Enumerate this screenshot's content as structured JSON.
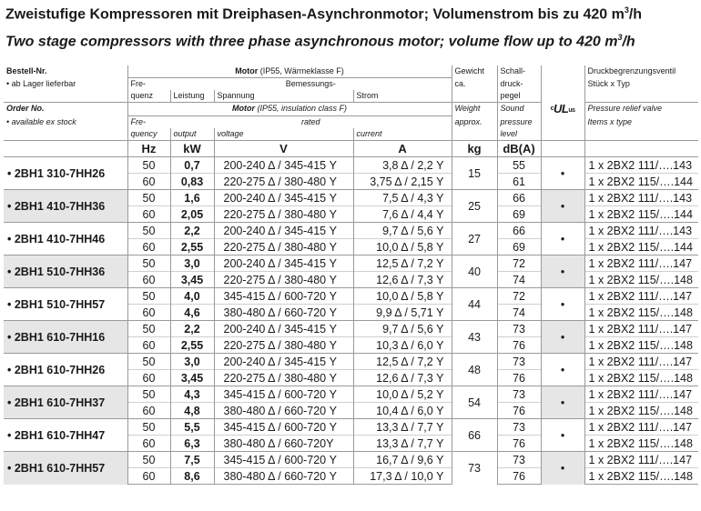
{
  "title_de": "Zweistufige Kompressoren mit Dreiphasen-Asynchronmotor; Volumenstrom bis zu 420 m",
  "title_de_sup": "3",
  "title_de_tail": "/h",
  "title_en": "Two stage compressors with three phase asynchronous motor; volume flow up to 420 m",
  "title_en_sup": "3",
  "title_en_tail": "/h",
  "header_de": {
    "order_no": "Bestell-Nr.",
    "ex_stock": "• ab Lager lieferbar",
    "motor": "Motor",
    "motor_spec": " (IP55, Wärmeklasse F)",
    "rated": "Bemessungs-",
    "freq1": "Fre-",
    "freq2": "quenz",
    "output": "Leistung",
    "voltage": "Spannung",
    "current": "Strom",
    "weight1": "Gewicht",
    "weight2": "ca.",
    "sound1": "Schall-",
    "sound2": "druck-",
    "sound3": "pegel",
    "valve1": "Druckbegrenzungsventil",
    "valve2": "Stück x Typ"
  },
  "header_en": {
    "order_no": "Order No.",
    "ex_stock": "• available ex stock",
    "motor": "Motor",
    "motor_spec": " (IP55, insulation class F)",
    "rated": "rated",
    "freq1": "Fre-",
    "freq2": "quency",
    "output": "output",
    "voltage": "voltage",
    "current": "current",
    "weight1": "Weight",
    "weight2": "approx.",
    "sound1": "Sound",
    "sound2": "pressure",
    "sound3": "level",
    "valve1": "Pressure relief valve",
    "valve2": "Items x type"
  },
  "cert_badge": {
    "c": "c",
    "ul": "UL",
    "us": "us"
  },
  "units": {
    "hz": "Hz",
    "kw": "kW",
    "v": "V",
    "a": "A",
    "kg": "kg",
    "db": "dB(A)"
  },
  "bullet": "•",
  "rows": [
    {
      "order": "• 2BH1 310-7HH26",
      "kg": "15",
      "mark": "•",
      "lines": [
        {
          "hz": "50",
          "kw": "0,7",
          "v": "200-240 Δ / 345-415 Y",
          "a": "3,8 Δ / 2,2 Y",
          "db": "55",
          "valve": "1 x 2BX2 111/….143"
        },
        {
          "hz": "60",
          "kw": "0,83",
          "v": "220-275 Δ / 380-480 Y",
          "a": "3,75 Δ / 2,15 Y",
          "db": "61",
          "valve": "1 x 2BX2 115/….144"
        }
      ]
    },
    {
      "order": "• 2BH1 410-7HH36",
      "kg": "25",
      "mark": "•",
      "lines": [
        {
          "hz": "50",
          "kw": "1,6",
          "v": "200-240 Δ / 345-415 Y",
          "a": "7,5 Δ / 4,3 Y",
          "db": "66",
          "valve": "1 x 2BX2 111/….143"
        },
        {
          "hz": "60",
          "kw": "2,05",
          "v": "220-275 Δ / 380-480 Y",
          "a": "7,6 Δ / 4,4 Y",
          "db": "69",
          "valve": "1 x 2BX2 115/….144"
        }
      ]
    },
    {
      "order": "• 2BH1 410-7HH46",
      "kg": "27",
      "mark": "•",
      "lines": [
        {
          "hz": "50",
          "kw": "2,2",
          "v": "200-240 Δ / 345-415 Y",
          "a": "9,7 Δ / 5,6 Y",
          "db": "66",
          "valve": "1 x 2BX2 111/….143"
        },
        {
          "hz": "60",
          "kw": "2,55",
          "v": "220-275 Δ / 380-480 Y",
          "a": "10,0 Δ / 5,8 Y",
          "db": "69",
          "valve": "1 x 2BX2 115/….144"
        }
      ]
    },
    {
      "order": "• 2BH1 510-7HH36",
      "kg": "40",
      "mark": "•",
      "lines": [
        {
          "hz": "50",
          "kw": "3,0",
          "v": "200-240 Δ / 345-415 Y",
          "a": "12,5 Δ / 7,2 Y",
          "db": "72",
          "valve": "1 x 2BX2 111/….147"
        },
        {
          "hz": "60",
          "kw": "3,45",
          "v": "220-275 Δ / 380-480 Y",
          "a": "12,6 Δ / 7,3 Y",
          "db": "74",
          "valve": "1 x 2BX2 115/….148"
        }
      ]
    },
    {
      "order": "• 2BH1 510-7HH57",
      "kg": "44",
      "mark": "•",
      "lines": [
        {
          "hz": "50",
          "kw": "4,0",
          "v": "345-415 Δ / 600-720 Y",
          "a": "10,0 Δ / 5,8 Y",
          "db": "72",
          "valve": "1 x 2BX2 111/….147"
        },
        {
          "hz": "60",
          "kw": "4,6",
          "v": "380-480 Δ / 660-720 Y",
          "a": "9,9 Δ / 5,71 Y",
          "db": "74",
          "valve": "1 x 2BX2 115/….148"
        }
      ]
    },
    {
      "order": "• 2BH1 610-7HH16",
      "kg": "43",
      "mark": "•",
      "lines": [
        {
          "hz": "50",
          "kw": "2,2",
          "v": "200-240 Δ / 345-415 Y",
          "a": "9,7 Δ / 5,6 Y",
          "db": "73",
          "valve": "1 x 2BX2 111/….147"
        },
        {
          "hz": "60",
          "kw": "2,55",
          "v": "220-275 Δ / 380-480 Y",
          "a": "10,3 Δ / 6,0 Y",
          "db": "76",
          "valve": "1 x 2BX2 115/….148"
        }
      ]
    },
    {
      "order": "• 2BH1 610-7HH26",
      "kg": "48",
      "mark": "•",
      "lines": [
        {
          "hz": "50",
          "kw": "3,0",
          "v": "200-240 Δ / 345-415 Y",
          "a": "12,5 Δ / 7,2 Y",
          "db": "73",
          "valve": "1 x 2BX2 111/….147"
        },
        {
          "hz": "60",
          "kw": "3,45",
          "v": "220-275 Δ / 380-480 Y",
          "a": "12,6 Δ / 7,3 Y",
          "db": "76",
          "valve": "1 x 2BX2 115/….148"
        }
      ]
    },
    {
      "order": "• 2BH1 610-7HH37",
      "kg": "54",
      "mark": "•",
      "lines": [
        {
          "hz": "50",
          "kw": "4,3",
          "v": "345-415 Δ / 600-720 Y",
          "a": "10,0 Δ / 5,2 Y",
          "db": "73",
          "valve": "1 x 2BX2 111/….147"
        },
        {
          "hz": "60",
          "kw": "4,8",
          "v": "380-480 Δ / 660-720 Y",
          "a": "10,4 Δ / 6,0 Y",
          "db": "76",
          "valve": "1 x 2BX2 115/….148"
        }
      ]
    },
    {
      "order": "• 2BH1 610-7HH47",
      "kg": "66",
      "mark": "•",
      "lines": [
        {
          "hz": "50",
          "kw": "5,5",
          "v": "345-415 Δ / 600-720 Y",
          "a": "13,3 Δ / 7,7 Y",
          "db": "73",
          "valve": "1 x 2BX2 111/….147"
        },
        {
          "hz": "60",
          "kw": "6,3",
          "v": "380-480 Δ / 660-720Y",
          "a": "13,3 Δ / 7,7 Y",
          "db": "76",
          "valve": "1 x 2BX2 115/….148"
        }
      ]
    },
    {
      "order": "• 2BH1 610-7HH57",
      "kg": "73",
      "mark": "•",
      "lines": [
        {
          "hz": "50",
          "kw": "7,5",
          "v": "345-415 Δ / 600-720 Y",
          "a": "16,7 Δ / 9,6 Y",
          "db": "73",
          "valve": "1 x 2BX2 111/….147"
        },
        {
          "hz": "60",
          "kw": "8,6",
          "v": "380-480 Δ / 660-720 Y",
          "a": "17,3 Δ / 10,0 Y",
          "db": "76",
          "valve": "1 x 2BX2 115/….148"
        }
      ]
    }
  ]
}
